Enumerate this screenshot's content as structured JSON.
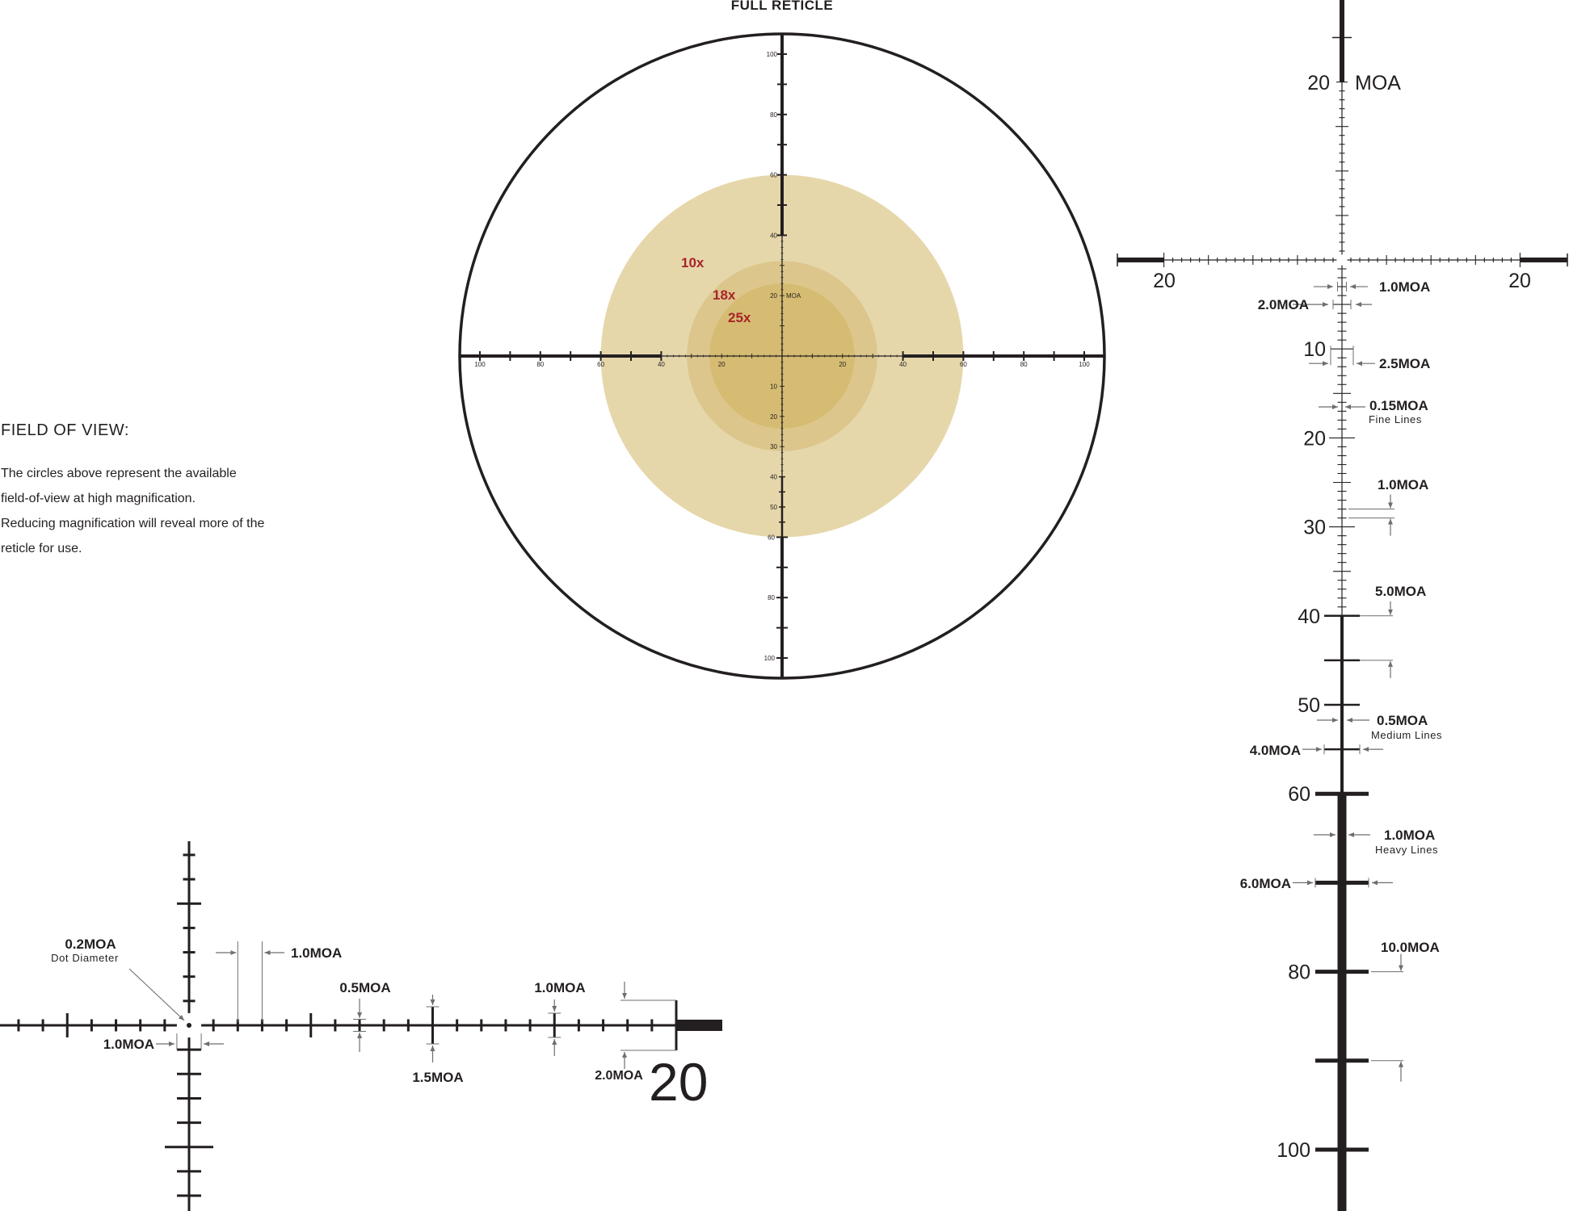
{
  "title": "FULL RETICLE",
  "fov": {
    "heading": "FIELD OF VIEW:",
    "lines": [
      "The circles above represent the available",
      "field-of-view at high magnification.",
      "Reducing magnification will reveal more of the",
      "reticle for use."
    ]
  },
  "full_reticle": {
    "magnifications": [
      "10x",
      "18x",
      "25x"
    ],
    "fov_radius_moa": [
      60,
      31.5,
      24
    ],
    "fov_colors": [
      "#e6d7ab",
      "#dcc68c",
      "#d5bc72"
    ],
    "unit": "MOA",
    "h_labels": [
      20,
      40,
      60,
      80,
      100
    ],
    "v_top_labels": [
      20,
      40,
      60,
      80,
      100
    ],
    "v_bottom_labels": [
      10,
      20,
      30,
      40,
      50,
      60,
      80,
      100
    ]
  },
  "detail_main": {
    "top_label": "20",
    "unit": "MOA",
    "h_label_left": "20",
    "h_label_right": "20",
    "v_labels": [
      10,
      20,
      30,
      40,
      50,
      60,
      80,
      100
    ],
    "annotations": {
      "tick_1": "1.0MOA",
      "tick_2": "2.0MOA",
      "tick_10": "2.5MOA",
      "fine_width": "0.15MOA",
      "fine_caption": "Fine Lines",
      "spacing_1": "1.0MOA",
      "spacing_5": "5.0MOA",
      "medium_width": "0.5MOA",
      "medium_caption": "Medium Lines",
      "medium_tick": "4.0MOA",
      "heavy_width": "1.0MOA",
      "heavy_caption": "Heavy Lines",
      "heavy_tick": "6.0MOA",
      "spacing_10": "10.0MOA"
    }
  },
  "detail_center": {
    "end_label": "20",
    "annotations": {
      "dot": "0.2MOA",
      "dot_caption": "Dot Diameter",
      "gap": "1.0MOA",
      "spacing": "1.0MOA",
      "fine_tick": "0.5MOA",
      "ten_tick": "1.5MOA",
      "fifteen_tick": "1.0MOA",
      "end_tick": "2.0MOA"
    }
  },
  "colors": {
    "ink": "#231f20",
    "annotation": "#6d6e71",
    "magnification_text": "#a8232a"
  }
}
